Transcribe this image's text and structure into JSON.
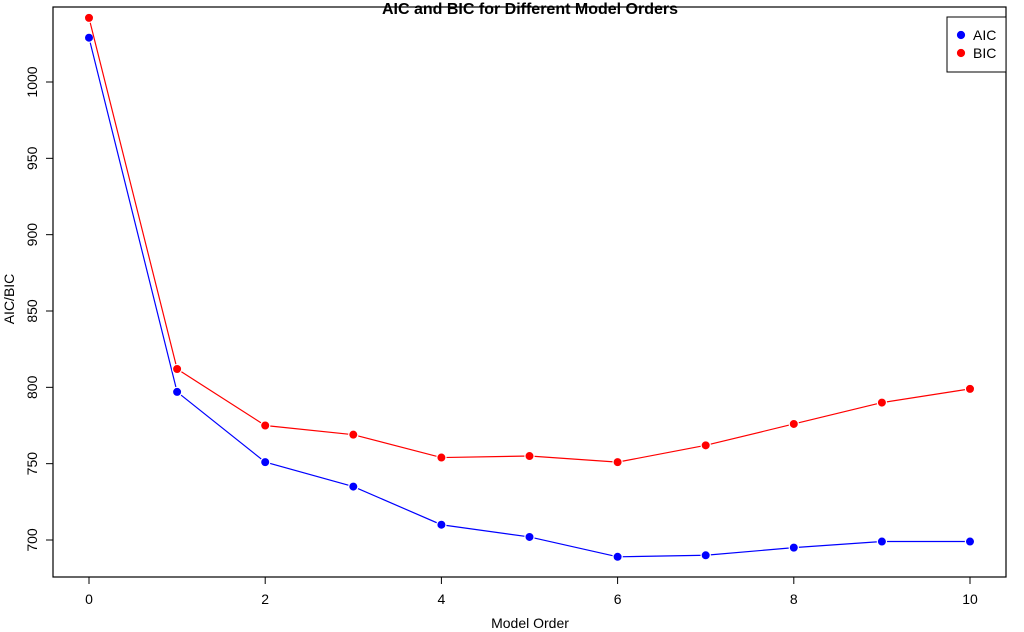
{
  "chart_data": {
    "type": "line",
    "title": "AIC and BIC for Different Model Orders",
    "xlabel": "Model Order",
    "ylabel": "AIC/BIC",
    "xlim": [
      0,
      10
    ],
    "ylim": [
      675,
      1040
    ],
    "x": [
      0,
      1,
      2,
      3,
      4,
      5,
      6,
      7,
      8,
      9,
      10
    ],
    "x_ticks": [
      0,
      2,
      4,
      6,
      8,
      10
    ],
    "y_ticks": [
      700,
      750,
      800,
      850,
      900,
      950,
      1000
    ],
    "grid": false,
    "legend_position": "top-right",
    "series": [
      {
        "name": "AIC",
        "color": "#0000ff",
        "values": [
          1029,
          797,
          751,
          735,
          710,
          702,
          689,
          690,
          695,
          699,
          699
        ]
      },
      {
        "name": "BIC",
        "color": "#ff0000",
        "values": [
          1042,
          812,
          775,
          769,
          754,
          755,
          751,
          762,
          776,
          790,
          799
        ]
      }
    ]
  }
}
